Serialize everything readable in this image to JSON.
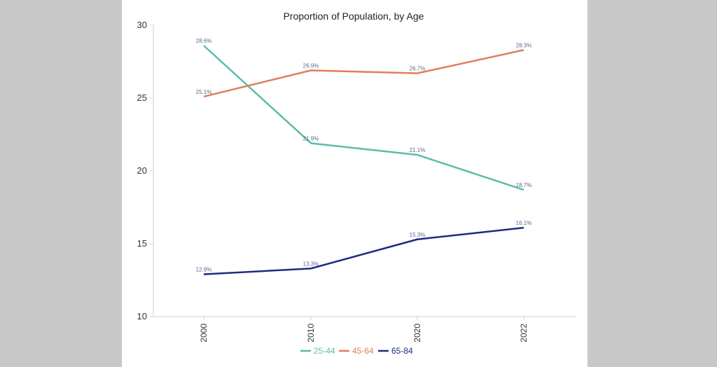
{
  "chart_data": {
    "type": "line",
    "title": "Proportion of Population, by Age",
    "xlabel": "",
    "ylabel": "",
    "x": [
      "2000",
      "2010",
      "2020",
      "2022"
    ],
    "ylim": [
      10,
      30
    ],
    "yticks": [
      10,
      15,
      20,
      25,
      30
    ],
    "grid": false,
    "legend_position": "bottom",
    "series": [
      {
        "name": "25-44",
        "color": "#5bbcaa",
        "values": [
          28.6,
          21.9,
          21.1,
          18.7
        ],
        "labels": [
          "28.6%",
          "21.9%",
          "21.1%",
          "18.7%"
        ]
      },
      {
        "name": "45-64",
        "color": "#e07e5e",
        "values": [
          25.1,
          26.9,
          26.7,
          28.3
        ],
        "labels": [
          "25.1%",
          "26.9%",
          "26.7%",
          "28.3%"
        ]
      },
      {
        "name": "65-84",
        "color": "#1f2a80",
        "values": [
          12.9,
          13.3,
          15.3,
          16.1
        ],
        "labels": [
          "12.9%",
          "13.3%",
          "15.3%",
          "16.1%"
        ]
      }
    ],
    "label_color": "#5a6b8c"
  }
}
